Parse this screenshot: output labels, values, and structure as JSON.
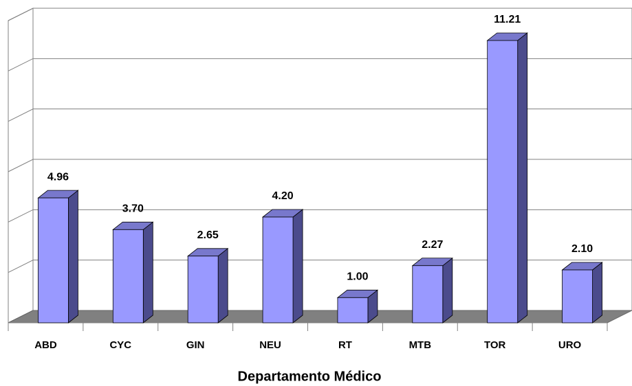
{
  "chart_data": {
    "type": "bar3d",
    "x_label": "Departamento Médico",
    "categories": [
      "ABD",
      "CYC",
      "GIN",
      "NEU",
      "RT",
      "MTB",
      "TOR",
      "URO"
    ],
    "values": [
      4.96,
      3.7,
      2.65,
      4.2,
      1.0,
      2.27,
      11.21,
      2.1
    ],
    "value_labels": [
      "4.96",
      "3.70",
      "2.65",
      "4.20",
      "1.00",
      "2.27",
      "11.21",
      "2.10"
    ],
    "color": "#9999ff",
    "ylim": [
      0,
      12
    ],
    "yticks": [
      0,
      2,
      4,
      6,
      8,
      10,
      12
    ],
    "grid": true
  }
}
